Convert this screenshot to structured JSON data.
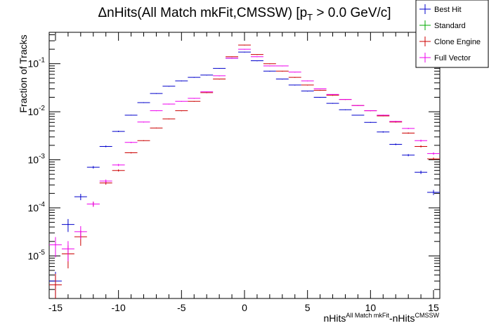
{
  "chart_data": {
    "type": "scatter",
    "title_parts": {
      "delta": "Δ",
      "main": "nHits(All Match mkFit,CMSSW) [p",
      "sub": "T",
      "tail": " > 0.0 GeV/c]"
    },
    "xlabel_parts": {
      "a": "nHits",
      "sup1": "All Match mkFit",
      "b": "-nHits",
      "sup2": "CMSSW"
    },
    "ylabel": "Fraction of Tracks",
    "xlim": [
      -15.5,
      15.5
    ],
    "ylog": true,
    "ylim": [
      1.3e-06,
      0.45
    ],
    "x_ticks": [
      -15,
      -10,
      -5,
      0,
      5,
      10,
      15
    ],
    "y_ticks": [
      {
        "value": 1e-05,
        "base": "10",
        "exp": "-5"
      },
      {
        "value": 0.0001,
        "base": "10",
        "exp": "-4"
      },
      {
        "value": 0.001,
        "base": "10",
        "exp": "-3"
      },
      {
        "value": 0.01,
        "base": "10",
        "exp": "-2"
      },
      {
        "value": 0.1,
        "base": "10",
        "exp": "-1"
      }
    ],
    "legend_placement": "top-right",
    "series": [
      {
        "name": "Best Hit",
        "color": "#0000cc",
        "x": [
          -15,
          -14,
          -13,
          -12,
          -11,
          -10,
          -9,
          -8,
          -7,
          -6,
          -5,
          -4,
          -3,
          -2,
          -1,
          0,
          1,
          2,
          3,
          4,
          5,
          6,
          7,
          8,
          9,
          10,
          11,
          12,
          13,
          14,
          15
        ],
        "y": [
          3e-06,
          4.5e-05,
          0.00017,
          0.0007,
          0.0019,
          0.0039,
          0.0085,
          0.0155,
          0.024,
          0.034,
          0.044,
          0.052,
          0.058,
          0.08,
          0.13,
          0.175,
          0.115,
          0.07,
          0.048,
          0.036,
          0.027,
          0.02,
          0.015,
          0.011,
          0.0085,
          0.006,
          0.0038,
          0.0021,
          0.00125,
          0.00055,
          0.00021
        ],
        "yerr_rel": [
          0.55,
          0.3,
          0.15,
          0.06,
          0.04,
          0.03,
          0.02,
          0.015,
          0.012,
          0.01,
          0.01,
          0.01,
          0.01,
          0.01,
          0.01,
          0.01,
          0.01,
          0.01,
          0.01,
          0.01,
          0.01,
          0.01,
          0.012,
          0.014,
          0.015,
          0.02,
          0.03,
          0.04,
          0.05,
          0.08,
          0.12
        ]
      },
      {
        "name": "Standard",
        "color": "#00aa00",
        "x": [],
        "y": [],
        "yerr_rel": []
      },
      {
        "name": "Clone Engine",
        "color": "#cc0000",
        "x": [
          -15,
          -14,
          -13,
          -12,
          -11,
          -10,
          -9,
          -8,
          -7,
          -6,
          -5,
          -4,
          -3,
          -2,
          -1,
          0,
          1,
          2,
          3,
          4,
          5,
          6,
          7,
          8,
          9,
          10,
          11,
          12,
          13,
          14,
          15
        ],
        "y": [
          2.5e-06,
          1.1e-05,
          2.5e-05,
          0.00012,
          0.00033,
          0.0006,
          0.0014,
          0.0025,
          0.0046,
          0.0071,
          0.0105,
          0.0165,
          0.025,
          0.048,
          0.14,
          0.245,
          0.155,
          0.1,
          0.07,
          0.052,
          0.036,
          0.028,
          0.022,
          0.018,
          0.0135,
          0.0105,
          0.0082,
          0.0061,
          0.0036,
          0.0019,
          0.00105
        ],
        "yerr_rel": [
          0.7,
          0.5,
          0.35,
          0.12,
          0.08,
          0.05,
          0.03,
          0.02,
          0.015,
          0.012,
          0.01,
          0.01,
          0.01,
          0.01,
          0.01,
          0.01,
          0.01,
          0.01,
          0.01,
          0.01,
          0.01,
          0.01,
          0.01,
          0.012,
          0.014,
          0.015,
          0.02,
          0.025,
          0.03,
          0.05,
          0.06
        ]
      },
      {
        "name": "Full Vector",
        "color": "#ee00ee",
        "x": [
          -15,
          -14,
          -13,
          -12,
          -11,
          -10,
          -9,
          -8,
          -7,
          -6,
          -5,
          -4,
          -3,
          -2,
          -1,
          0,
          1,
          2,
          3,
          4,
          5,
          6,
          7,
          8,
          9,
          10,
          11,
          12,
          13,
          14,
          15
        ],
        "y": [
          1.7e-05,
          1.4e-05,
          3.2e-05,
          0.00012,
          0.00036,
          0.00078,
          0.0023,
          0.0061,
          0.0105,
          0.0145,
          0.0165,
          0.019,
          0.026,
          0.056,
          0.13,
          0.2,
          0.14,
          0.09,
          0.09,
          0.067,
          0.044,
          0.03,
          0.023,
          0.018,
          0.0135,
          0.0105,
          0.0085,
          0.0063,
          0.0045,
          0.0025,
          0.00135
        ],
        "yerr_rel": [
          0.45,
          0.45,
          0.3,
          0.12,
          0.08,
          0.05,
          0.03,
          0.02,
          0.015,
          0.012,
          0.01,
          0.01,
          0.01,
          0.01,
          0.01,
          0.01,
          0.01,
          0.01,
          0.01,
          0.01,
          0.01,
          0.01,
          0.01,
          0.012,
          0.014,
          0.015,
          0.02,
          0.025,
          0.03,
          0.05,
          0.06
        ]
      }
    ]
  }
}
